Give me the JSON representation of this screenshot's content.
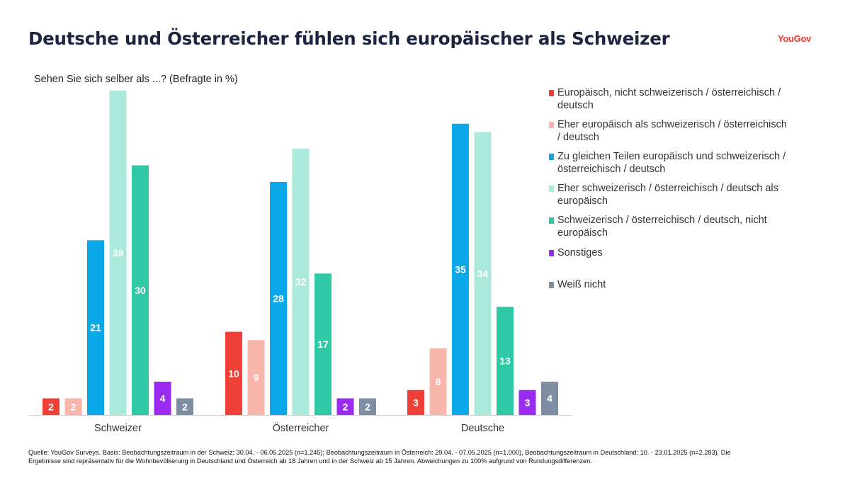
{
  "header": {
    "title": "Deutsche und Österreicher fühlen sich europäischer als Schweizer",
    "brand": "YouGov"
  },
  "subtitle": "Sehen Sie sich selber als ...? (Befragte in %)",
  "source": "Quelle: YouGov Surveys. Basis: Beobachtungszeitraum in der Schweiz: 30.04. - 06.05.2025 (n=1.245); Beobachtungszeitraum in Österreich: 29.04. - 07.05.2025 (n=1.000), Beobachtungszeitraum in Deutschland: 10. - 23.01.2025 (n=2.283). Die Ergebnisse sind repräsentativ für die Wohnbevölkerung in Deutschland und Österreich ab 18 Jahren und in der Schweiz ab 15 Jahren. Abweichungen zu 100% aufgrund von Rundungsdifferenzen.",
  "chart_data": {
    "type": "bar",
    "categories": [
      "Schweizer",
      "Österreicher",
      "Deutsche"
    ],
    "ylim": [
      0,
      40
    ],
    "grid": false,
    "legend_position": "right",
    "series": [
      {
        "name": "Europäisch, nicht schweizerisch / österreichisch / deutsch",
        "color": "#ee4036",
        "values": [
          2,
          10,
          3
        ]
      },
      {
        "name": "Eher europäisch als schweizerisch / österreichisch / deutsch",
        "color": "#f8b5aa",
        "values": [
          2,
          9,
          8
        ]
      },
      {
        "name": "Zu gleichen Teilen europäisch und schweizerisch / österreichisch / deutsch",
        "color": "#0aa8e8",
        "values": [
          21,
          28,
          35
        ]
      },
      {
        "name": "Eher schweizerisch / österreichisch / deutsch als europäisch",
        "color": "#abeadb",
        "values": [
          39,
          32,
          34
        ]
      },
      {
        "name": "Schweizerisch / österreichisch / deutsch, nicht europäisch",
        "color": "#2ec9a4",
        "values": [
          30,
          17,
          13
        ]
      },
      {
        "name": "Sonstiges",
        "color": "#9b2bf0",
        "values": [
          4,
          2,
          3
        ]
      },
      {
        "name": "Weiß nicht",
        "color": "#7f8da3",
        "values": [
          2,
          2,
          4
        ]
      }
    ]
  }
}
